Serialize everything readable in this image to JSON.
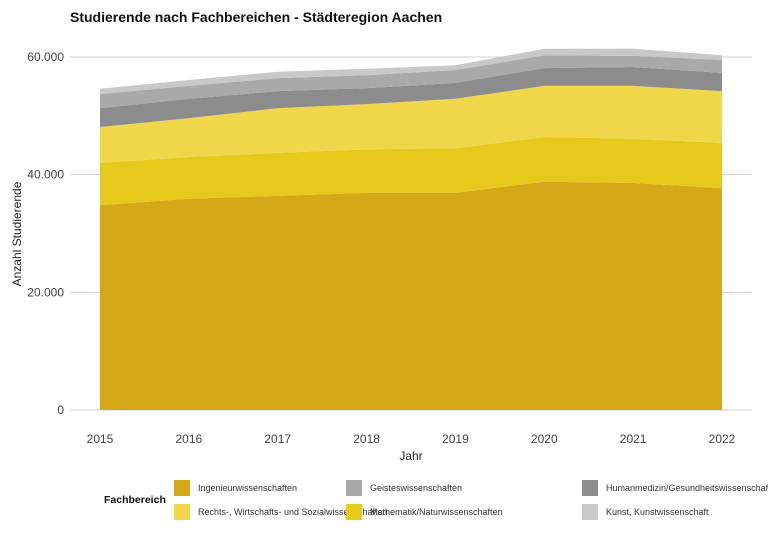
{
  "chart_data": {
    "type": "area",
    "stacked": true,
    "title": "Studierende nach Fachbereichen - Städteregion Aachen",
    "xlabel": "Jahr",
    "ylabel": "Anzahl Studierende",
    "x": [
      2015,
      2016,
      2017,
      2018,
      2019,
      2020,
      2021,
      2022
    ],
    "x_tick_labels": [
      "2015",
      "2016",
      "2017",
      "2018",
      "2019",
      "2020",
      "2021",
      "2022"
    ],
    "ylim": [
      0,
      61500
    ],
    "y_ticks": [
      0,
      20000,
      40000,
      60000
    ],
    "y_tick_labels": [
      "0",
      "20.000",
      "40.000",
      "60.000"
    ],
    "grid": "horizontal",
    "legend_title": "Fachbereich",
    "legend_placement": "bottom",
    "series": [
      {
        "name": "Ingenieurwissenschaften",
        "color": "#D4A817",
        "values": [
          34800,
          35900,
          36400,
          36900,
          36900,
          38800,
          38600,
          37700
        ]
      },
      {
        "name": "Mathematik/Naturwissenschaften",
        "color": "#E6C91A",
        "values": [
          7200,
          7100,
          7300,
          7400,
          7600,
          7600,
          7500,
          7700
        ]
      },
      {
        "name": "Rechts-, Wirtschafts- und Sozialwissenschaften",
        "color": "#F0D74A",
        "values": [
          6100,
          6600,
          7600,
          7700,
          8400,
          8700,
          9000,
          8800
        ]
      },
      {
        "name": "Humanmedizin/Gesundheitswissenschaften",
        "color": "#8C8C8C",
        "values": [
          3200,
          3300,
          2900,
          2700,
          2700,
          3000,
          3200,
          3100
        ]
      },
      {
        "name": "Geisteswissenschaften",
        "color": "#A9A9A9",
        "values": [
          2400,
          2200,
          2200,
          2200,
          2200,
          2200,
          1900,
          2200
        ]
      },
      {
        "name": "Kunst, Kunstwissenschaft",
        "color": "#C8C8C8",
        "values": [
          900,
          1000,
          1100,
          1100,
          800,
          1100,
          1200,
          800
        ]
      }
    ],
    "legend_order": [
      0,
      2,
      4,
      1,
      3,
      5
    ]
  }
}
